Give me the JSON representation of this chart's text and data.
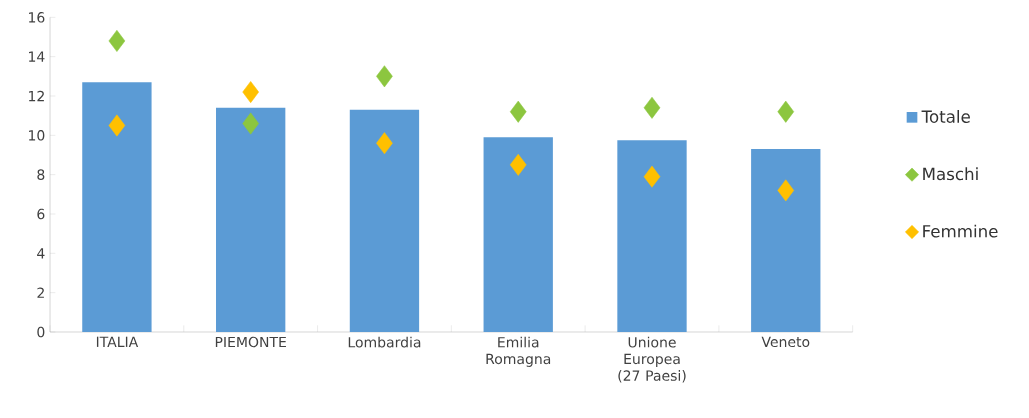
{
  "chart_data": {
    "type": "bar",
    "categories": [
      "ITALIA",
      "PIEMONTE",
      "Lombardia",
      "Emilia Romagna",
      "Unione Europea (27 Paesi)",
      "Veneto"
    ],
    "series": [
      {
        "name": "Totale",
        "color": "#5b9bd5",
        "values": [
          12.7,
          11.4,
          11.3,
          9.9,
          9.75,
          9.3
        ]
      },
      {
        "name": "Maschi",
        "type": "scatter",
        "color": "#8cc63f",
        "values": [
          14.8,
          10.6,
          13.0,
          11.2,
          11.4,
          11.2
        ]
      },
      {
        "name": "Femmine",
        "type": "scatter",
        "color": "#ffc000",
        "values": [
          10.5,
          12.2,
          9.6,
          8.5,
          7.9,
          7.2
        ]
      }
    ],
    "ylim": [
      0,
      16
    ],
    "yticks": [
      0,
      2,
      4,
      6,
      8,
      10,
      12,
      14,
      16
    ],
    "marker": "diamond",
    "legend": "right",
    "grid": false
  }
}
